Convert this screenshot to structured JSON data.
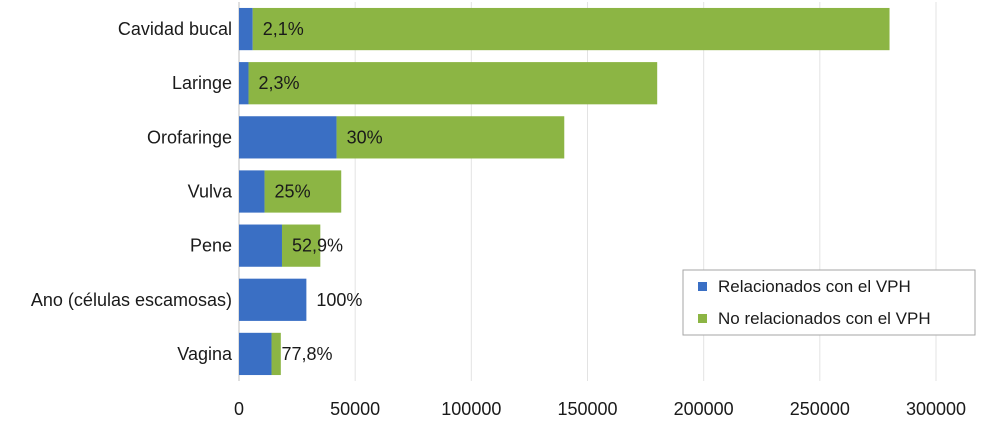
{
  "chart_data": {
    "type": "bar",
    "orientation": "horizontal",
    "stacked": true,
    "categories": [
      "Cavidad bucal",
      "Laringe",
      "Orofaringe",
      "Vulva",
      "Pene",
      "Ano (células escamosas)",
      "Vagina"
    ],
    "series": [
      {
        "name": "Relacionados con el VPH",
        "color": "#3a6fc4",
        "values": [
          5900,
          4100,
          42000,
          11000,
          18500,
          29000,
          14000
        ]
      },
      {
        "name": "No relacionados con el VPH",
        "color": "#8cb544",
        "values": [
          274100,
          175900,
          98000,
          33000,
          16500,
          0,
          4000
        ]
      }
    ],
    "data_labels": [
      "2,1%",
      "2,3%",
      "30%",
      "25%",
      "52,9%",
      "100%",
      "77,8%"
    ],
    "xlim": [
      0,
      300000
    ],
    "xticks": [
      "0",
      "50000",
      "100000",
      "150000",
      "200000",
      "250000",
      "300000"
    ],
    "xtick_values": [
      0,
      50000,
      100000,
      150000,
      200000,
      250000,
      300000
    ],
    "grid": true,
    "legend_position": "right"
  }
}
